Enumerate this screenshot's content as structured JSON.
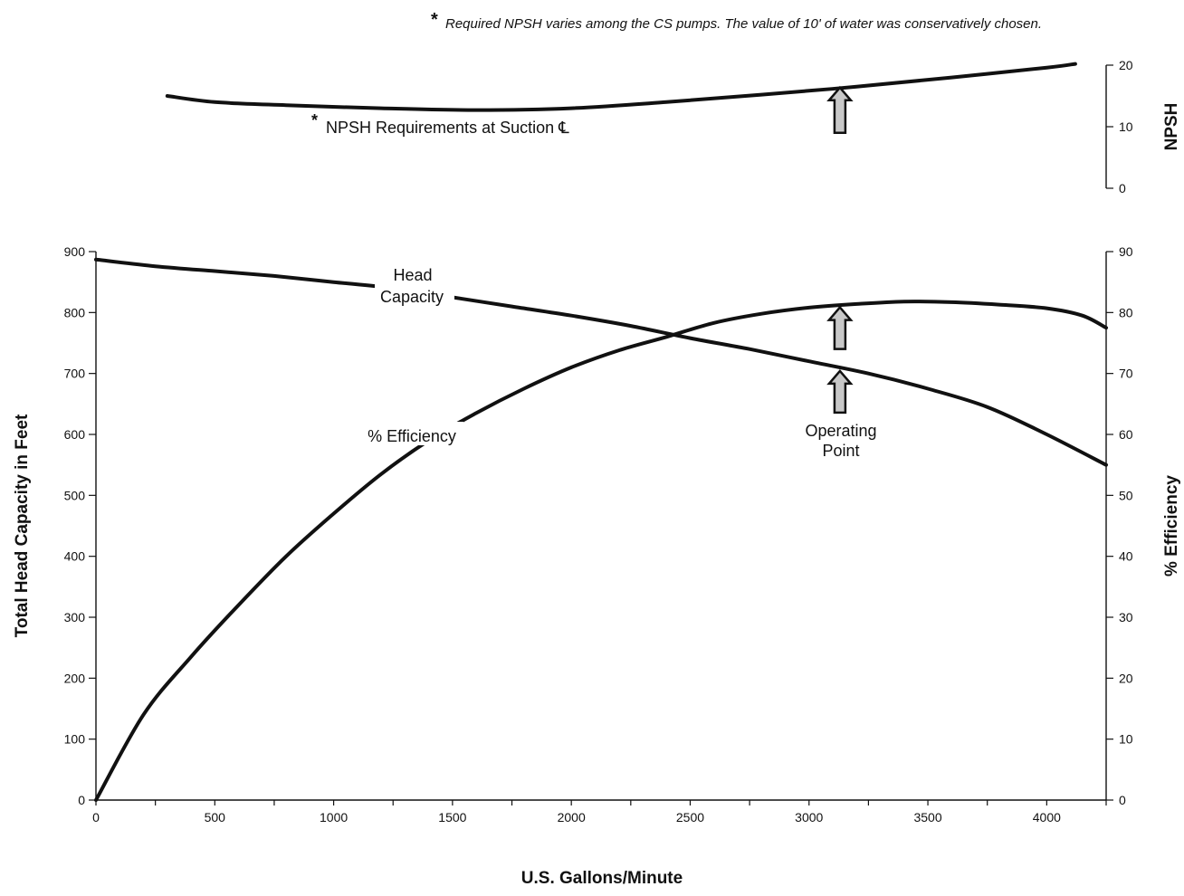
{
  "chart_data": {
    "type": "line",
    "footnote": "Required NPSH varies among the CS pumps.  The value of 10' of water was conservatively chosen.",
    "footnote_marker": "*",
    "xlabel": "U.S. Gallons/Minute",
    "xlim": [
      0,
      4250
    ],
    "xticks": [
      0,
      500,
      1000,
      1500,
      2000,
      2500,
      3000,
      3500,
      4000
    ],
    "ylabel_left": "Total Head Capacity in Feet",
    "ylim_left": [
      0,
      900
    ],
    "yticks_left": [
      0,
      100,
      200,
      300,
      400,
      500,
      600,
      700,
      800,
      900
    ],
    "ylabel_right": "% Efficiency",
    "ylim_right": [
      0,
      90
    ],
    "yticks_right": [
      0,
      10,
      20,
      30,
      40,
      50,
      60,
      70,
      80,
      90
    ],
    "ylabel_npsh": "NPSH",
    "ylim_npsh": [
      0,
      20
    ],
    "yticks_npsh": [
      0,
      10,
      20
    ],
    "series": [
      {
        "name": "NPSH Requirements at Suction ℄",
        "axis": "npsh",
        "x": [
          300,
          500,
          800,
          1200,
          1600,
          2000,
          2400,
          2800,
          3200,
          3600,
          4000,
          4120
        ],
        "y": [
          15,
          14,
          13.5,
          13,
          12.7,
          13,
          14,
          15.2,
          16.5,
          18,
          19.6,
          20.2
        ]
      },
      {
        "name": "Head Capacity",
        "axis": "left",
        "x": [
          0,
          250,
          500,
          750,
          1000,
          1250,
          1500,
          1750,
          2000,
          2250,
          2500,
          2750,
          3000,
          3250,
          3500,
          3750,
          4000,
          4250
        ],
        "y": [
          887,
          876,
          868,
          860,
          850,
          840,
          825,
          810,
          795,
          778,
          758,
          740,
          720,
          700,
          675,
          645,
          600,
          550
        ]
      },
      {
        "name": "% Efficiency",
        "axis": "right",
        "x": [
          0,
          200,
          400,
          600,
          800,
          1000,
          1200,
          1400,
          1600,
          1800,
          2000,
          2200,
          2400,
          2600,
          2800,
          3000,
          3200,
          3400,
          3600,
          3800,
          4000,
          4150,
          4250
        ],
        "y": [
          0,
          14,
          23.5,
          32,
          40,
          47,
          53.5,
          59,
          63.5,
          67.5,
          71,
          73.8,
          76,
          78.3,
          79.8,
          80.8,
          81.4,
          81.8,
          81.7,
          81.3,
          80.7,
          79.5,
          77.5
        ]
      }
    ],
    "annotations": [
      {
        "text_line1": "Head",
        "text_line2": "Capacity"
      },
      {
        "text": "% Efficiency"
      },
      {
        "text": "NPSH Requirements at Suction ℄",
        "marker": "*"
      },
      {
        "text_line1": "Operating",
        "text_line2": "Point",
        "x": 3130
      }
    ],
    "operating_point_x": 3130,
    "grid": false
  }
}
